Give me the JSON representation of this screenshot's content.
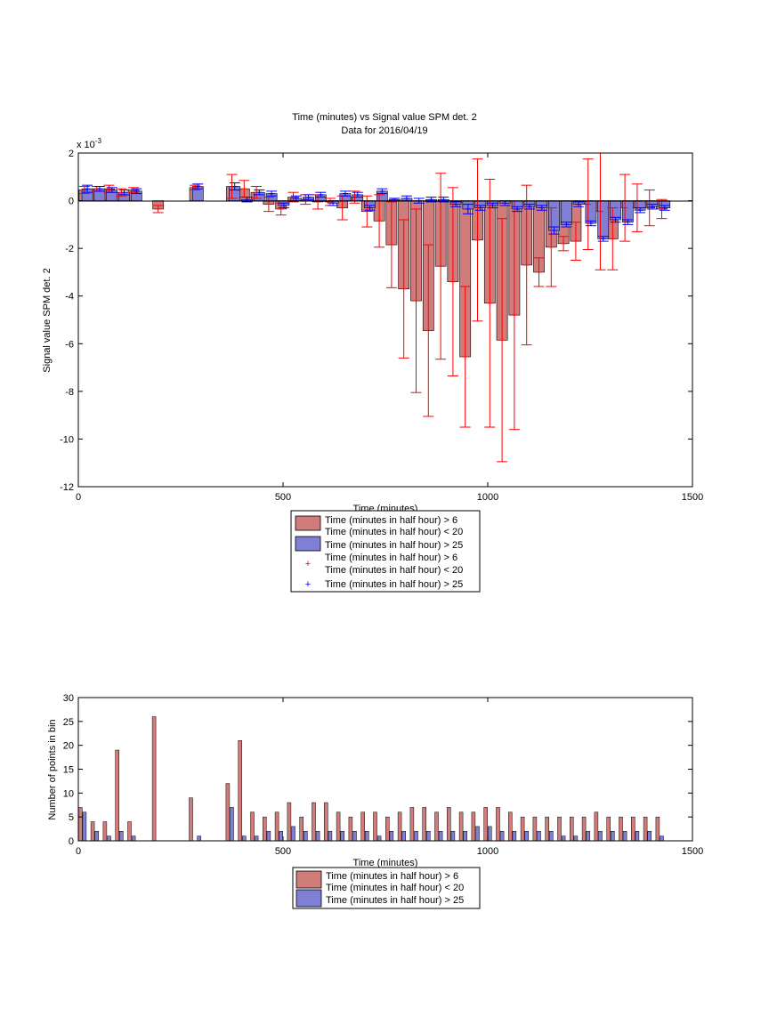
{
  "chart_data": [
    {
      "type": "bar",
      "title": "Time (minutes) vs Signal value SPM det. 2",
      "subtitle": "Data for 2016/04/19",
      "xlabel": "Time (minutes)",
      "ylabel": "Signal value SPM det. 2",
      "y_exponent": "x 10",
      "y_exponent_power": "-3",
      "xlim": [
        0,
        1500
      ],
      "ylim": [
        -12,
        2
      ],
      "xticks": [
        "0",
        "500",
        "1000",
        "1500"
      ],
      "yticks": [
        "2",
        "0",
        "-2",
        "-4",
        "-6",
        "-8",
        "-10",
        "-12"
      ],
      "grid": false,
      "colors": {
        "red_face": "#d27b7b",
        "red_line": "#ff0000",
        "blue_face": "#7f7fd6",
        "blue_line": "#0000ff"
      },
      "legend": [
        "Time (minutes in half hour) > 6",
        "Time (minutes in half hour) < 20",
        "Time (minutes in half hour) > 25",
        "Time (minutes in half hour) > 6",
        "Time (minutes in half hour) < 20",
        "Time (minutes in half hour) > 25"
      ],
      "series": [
        {
          "x": [
            15,
            45,
            75,
            105,
            135,
            195,
            285,
            375,
            405,
            435,
            465,
            495,
            525,
            555,
            585,
            615,
            645,
            675,
            705,
            735,
            765,
            795,
            825,
            855,
            885,
            915,
            945,
            975,
            1005,
            1035,
            1065,
            1095,
            1125,
            1155,
            1185,
            1215,
            1245,
            1275,
            1305,
            1335,
            1365,
            1395,
            1425
          ],
          "values": [
            0.45,
            0.5,
            0.5,
            0.35,
            0.45,
            -0.35,
            0.55,
            0.6,
            0.5,
            0.35,
            -0.15,
            -0.35,
            0.15,
            0.05,
            -0.05,
            -0.05,
            -0.3,
            0.15,
            -0.45,
            -0.85,
            -1.85,
            -3.7,
            -4.2,
            -5.45,
            -2.75,
            -3.4,
            -6.55,
            -1.65,
            -4.3,
            -5.85,
            -4.8,
            -2.7,
            -3.0,
            -1.95,
            -1.8,
            -1.7,
            -0.15,
            -0.45,
            -1.6,
            -0.3,
            -0.3,
            -0.3,
            -0.35
          ],
          "err": [
            0.15,
            0.1,
            0.15,
            0.15,
            0.1,
            0.15,
            0.1,
            0.5,
            0.35,
            0.25,
            0.3,
            0.25,
            0.2,
            0.2,
            0.3,
            0.15,
            0.5,
            0.25,
            0.65,
            1.1,
            1.8,
            2.9,
            3.85,
            3.6,
            3.9,
            3.95,
            2.95,
            3.4,
            5.2,
            5.1,
            4.8,
            3.35,
            0.6,
            1.65,
            0.3,
            0.8,
            1.9,
            2.45,
            1.3,
            1.4,
            1.0,
            0.75,
            0.4
          ]
        },
        {
          "x": [
            22,
            52,
            82,
            112,
            142,
            292,
            382,
            412,
            442,
            472,
            502,
            532,
            562,
            592,
            622,
            652,
            682,
            712,
            742,
            772,
            802,
            832,
            862,
            892,
            922,
            952,
            982,
            1012,
            1042,
            1072,
            1102,
            1132,
            1162,
            1192,
            1222,
            1252,
            1282,
            1312,
            1342,
            1372,
            1402,
            1432
          ],
          "values": [
            0.5,
            0.5,
            0.45,
            0.35,
            0.4,
            0.6,
            0.6,
            0.05,
            0.35,
            0.3,
            -0.2,
            0.1,
            0.15,
            0.25,
            -0.1,
            0.3,
            0.25,
            -0.3,
            0.4,
            0.05,
            0.1,
            0.0,
            0.05,
            0.05,
            -0.15,
            -0.35,
            -0.3,
            -0.2,
            -0.1,
            -0.35,
            -0.25,
            -0.3,
            -1.25,
            -1.0,
            -0.15,
            -0.95,
            -1.6,
            -0.8,
            -0.9,
            -0.4,
            -0.25,
            -0.3
          ],
          "err": [
            0.15,
            0.1,
            0.1,
            0.1,
            0.1,
            0.1,
            0.15,
            0.1,
            0.1,
            0.1,
            0.1,
            0.1,
            0.1,
            0.1,
            0.1,
            0.1,
            0.1,
            0.1,
            0.1,
            0.05,
            0.1,
            0.1,
            0.1,
            0.1,
            0.1,
            0.2,
            0.1,
            0.1,
            0.1,
            0.1,
            0.1,
            0.1,
            0.15,
            0.1,
            0.1,
            0.1,
            0.1,
            0.1,
            0.1,
            0.1,
            0.1,
            0.1
          ]
        }
      ]
    },
    {
      "type": "bar",
      "xlabel": "Time (minutes)",
      "ylabel": "Number of points in bin",
      "xlim": [
        0,
        1500
      ],
      "ylim": [
        0,
        30
      ],
      "xticks": [
        "0",
        "500",
        "1000",
        "1500"
      ],
      "yticks": [
        "30",
        "25",
        "20",
        "15",
        "10",
        "5",
        "0"
      ],
      "grid": false,
      "legend": [
        "Time (minutes in half hour) > 6",
        "Time (minutes in half hour) < 20",
        "Time (minutes in half hour) > 25"
      ],
      "series": [
        {
          "x": [
            5,
            35,
            65,
            95,
            125,
            185,
            275,
            365,
            395,
            425,
            455,
            485,
            515,
            545,
            575,
            605,
            635,
            665,
            695,
            725,
            755,
            785,
            815,
            845,
            875,
            905,
            935,
            965,
            995,
            1025,
            1055,
            1085,
            1115,
            1145,
            1175,
            1205,
            1235,
            1265,
            1295,
            1325,
            1355,
            1385,
            1415
          ],
          "values": [
            7,
            4,
            4,
            19,
            4,
            26,
            9,
            12,
            21,
            6,
            5,
            6,
            8,
            5,
            8,
            8,
            6,
            5,
            6,
            6,
            5,
            6,
            7,
            7,
            6,
            7,
            6,
            6,
            7,
            7,
            6,
            5,
            5,
            5,
            5,
            5,
            5,
            6,
            5,
            5,
            5,
            5,
            5
          ]
        },
        {
          "x": [
            15,
            45,
            75,
            105,
            135,
            295,
            375,
            405,
            435,
            465,
            495,
            525,
            555,
            585,
            615,
            645,
            675,
            705,
            735,
            765,
            795,
            825,
            855,
            885,
            915,
            945,
            975,
            1005,
            1035,
            1065,
            1095,
            1125,
            1155,
            1185,
            1215,
            1245,
            1275,
            1305,
            1335,
            1365,
            1395,
            1425
          ],
          "values": [
            6,
            2,
            1,
            2,
            1,
            1,
            7,
            1,
            1,
            2,
            2,
            3,
            2,
            2,
            2,
            2,
            2,
            2,
            1,
            2,
            2,
            2,
            2,
            2,
            2,
            2,
            3,
            3,
            2,
            2,
            2,
            2,
            2,
            1,
            1,
            2,
            2,
            2,
            2,
            2,
            2,
            1
          ]
        }
      ]
    }
  ]
}
